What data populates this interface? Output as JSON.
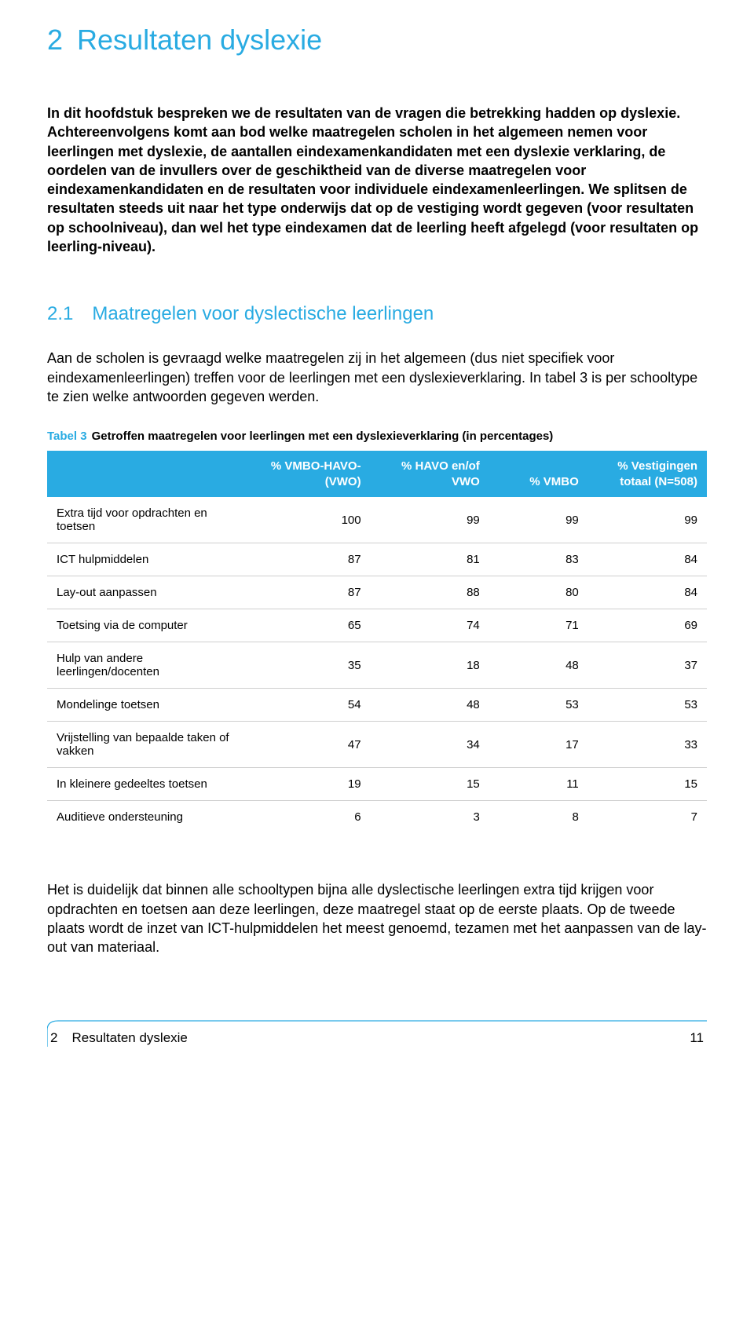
{
  "chapter": {
    "number": "2",
    "title": "Resultaten dyslexie"
  },
  "intro": "In dit hoofdstuk bespreken we de resultaten van de vragen die betrekking hadden op dyslexie. Achtereenvolgens komt aan bod welke maatregelen scholen in het algemeen nemen voor leerlingen met dyslexie, de aantallen eindexamenkandidaten met een dyslexie verklaring, de oordelen van de invullers over de geschiktheid van de diverse maatregelen voor eindexamenkandidaten en de resultaten voor individuele eindexamenleerlingen. We splitsen de resultaten steeds uit naar het type onderwijs dat op de vestiging wordt gegeven (voor resultaten op schoolniveau), dan wel het type eindexamen dat de leerling heeft afgelegd (voor resultaten op leerling-niveau).",
  "section": {
    "number": "2.1",
    "title": "Maatregelen voor dyslectische leerlingen"
  },
  "section_body": "Aan de scholen is gevraagd welke maatregelen zij in het algemeen (dus niet specifiek voor eindexamenleerlingen) treffen voor de leerlingen met een dyslexieverklaring. In tabel 3 is per schooltype te zien welke antwoorden gegeven werden.",
  "table": {
    "caption_label": "Tabel 3",
    "caption_desc": "Getroffen maatregelen voor leerlingen met een dyslexieverklaring (in percentages)",
    "columns": [
      "",
      "% VMBO-HAVO-\n(VWO)",
      "% HAVO en/of\nVWO",
      "% VMBO",
      "% Vestigingen\ntotaal (N=508)"
    ],
    "rows": [
      [
        "Extra tijd voor opdrachten en toetsen",
        "100",
        "99",
        "99",
        "99"
      ],
      [
        "ICT hulpmiddelen",
        "87",
        "81",
        "83",
        "84"
      ],
      [
        "Lay-out aanpassen",
        "87",
        "88",
        "80",
        "84"
      ],
      [
        "Toetsing via de computer",
        "65",
        "74",
        "71",
        "69"
      ],
      [
        "Hulp van andere leerlingen/docenten",
        "35",
        "18",
        "48",
        "37"
      ],
      [
        "Mondelinge toetsen",
        "54",
        "48",
        "53",
        "53"
      ],
      [
        "Vrijstelling van bepaalde taken of vakken",
        "47",
        "34",
        "17",
        "33"
      ],
      [
        "In kleinere gedeeltes toetsen",
        "19",
        "15",
        "11",
        "15"
      ],
      [
        "Auditieve ondersteuning",
        "6",
        "3",
        "8",
        "7"
      ]
    ],
    "header_bg": "#29abe2",
    "header_fg": "#ffffff",
    "row_border": "#cfcfcf",
    "col_widths": [
      "30%",
      "19%",
      "18%",
      "15%",
      "18%"
    ]
  },
  "conclusion": "Het is duidelijk dat binnen alle schooltypen bijna alle dyslectische leerlingen extra tijd krijgen voor opdrachten en toetsen aan deze leerlingen, deze maatregel staat op de eerste plaats. Op de tweede plaats wordt de inzet van ICT-hulpmiddelen het meest genoemd, tezamen met het aanpassen van de lay-out van materiaal.",
  "footer": {
    "chapter_num": "2",
    "chapter_title": "Resultaten dyslexie",
    "page_num": "11",
    "rule_color": "#29abe2"
  },
  "colors": {
    "accent": "#29abe2",
    "text": "#000000",
    "background": "#ffffff"
  }
}
